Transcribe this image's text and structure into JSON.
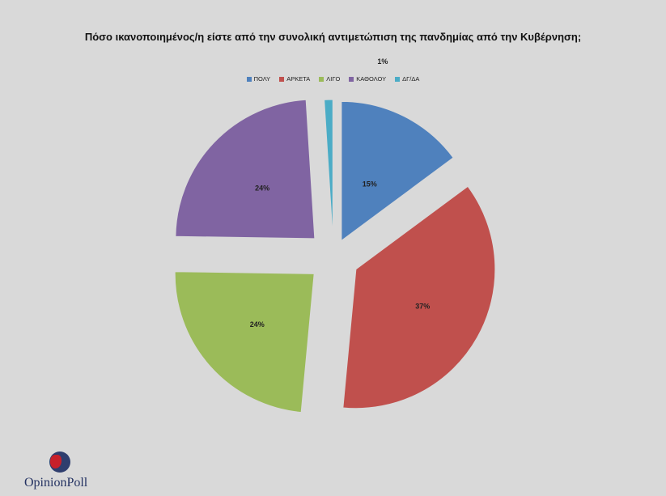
{
  "chart_data": {
    "type": "pie",
    "title": "Πόσο ικανοποιημένος/η είστε από την συνολική αντιμετώπιση της πανδημίας από την Κυβέρνηση;",
    "legend_position": "top",
    "exploded": true,
    "slices": [
      {
        "label": "ΠΟΛΥ",
        "value": 15,
        "display": "15%",
        "color": "#4f81bd"
      },
      {
        "label": "ΑΡΚΕΤΑ",
        "value": 37,
        "display": "37%",
        "color": "#c0504d"
      },
      {
        "label": "ΛΙΓΟ",
        "value": 24,
        "display": "24%",
        "color": "#9bbb59"
      },
      {
        "label": "ΚΑΘΟΛΟΥ",
        "value": 24,
        "display": "24%",
        "color": "#8064a2"
      },
      {
        "label": "ΔΓ/ΔΑ",
        "value": 1,
        "display": "1%",
        "color": "#4bacc6"
      }
    ]
  },
  "logo": {
    "text": "OpinionPoll"
  }
}
